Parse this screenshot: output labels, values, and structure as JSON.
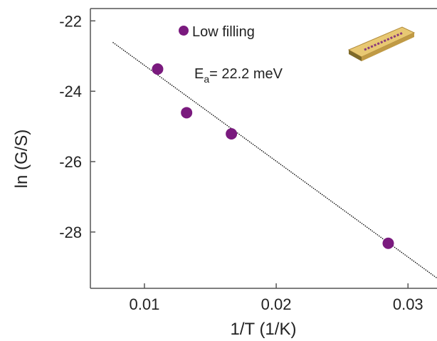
{
  "chart_data": {
    "type": "scatter",
    "x_label": "1/T (1/K)",
    "y_label": "ln (G/S)",
    "series": [
      {
        "name": "Low filling",
        "color": "#7a1a7e",
        "x": [
          0.011,
          0.0132,
          0.0166,
          0.0285
        ],
        "values": [
          -23.37,
          -24.61,
          -25.21,
          -28.32
        ]
      }
    ],
    "fit_line": {
      "color": "#000000",
      "x": [
        0.0076,
        0.0322
      ],
      "values": [
        -22.61,
        -29.31
      ]
    },
    "annotation": {
      "main": "E",
      "sub": "a",
      "rest": "= 22.2 meV"
    },
    "xlim": [
      0.0059,
      0.0322
    ],
    "ylim": [
      -29.6,
      -21.65
    ],
    "xticks": [
      0.01,
      0.02,
      0.03
    ],
    "yticks": [
      -22,
      -24,
      -26,
      -28
    ],
    "grid": false
  }
}
